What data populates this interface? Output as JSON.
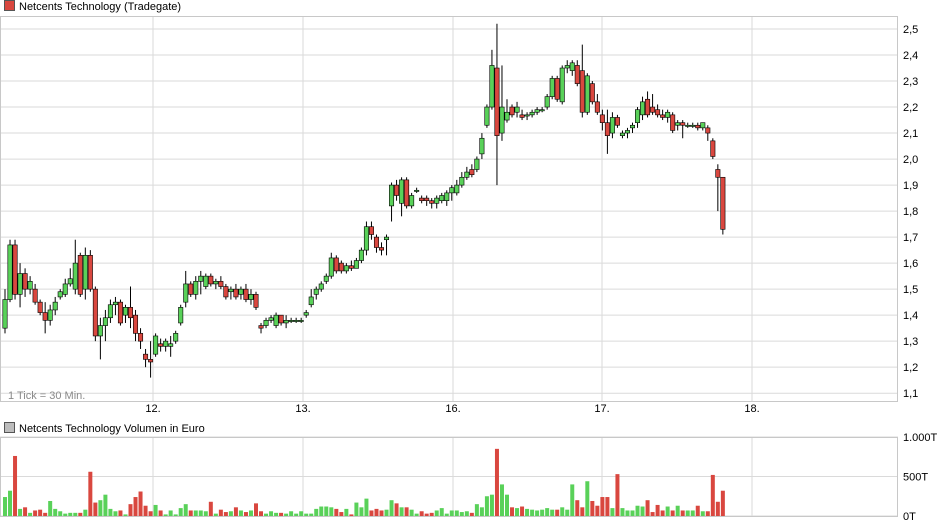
{
  "chart_data": [
    {
      "type": "candlestick",
      "title": "Netcents Technology (Tradegate)",
      "legend_color": "#d9473f",
      "note": "1 Tick = 30 Min.",
      "x_tick_labels": [
        "12.",
        "13.",
        "16.",
        "17.",
        "18."
      ],
      "ylim": [
        1.07,
        2.55
      ],
      "y_ticks": [
        1.1,
        1.2,
        1.3,
        1.4,
        1.5,
        1.6,
        1.7,
        1.8,
        1.9,
        2.0,
        2.1,
        2.2,
        2.3,
        2.4,
        2.5
      ],
      "y_tick_labels": [
        "1,1",
        "1,2",
        "1,3",
        "1,4",
        "1,5",
        "1,6",
        "1,7",
        "1,8",
        "1,9",
        "2,0",
        "2,1",
        "2,2",
        "2,3",
        "2,4",
        "2,5"
      ],
      "colors": {
        "up": "#59d159",
        "down": "#d9473f",
        "grid": "#dadada"
      },
      "candles": [
        [
          1.35,
          1.5,
          1.33,
          1.46
        ],
        [
          1.46,
          1.69,
          1.45,
          1.67
        ],
        [
          1.67,
          1.69,
          1.46,
          1.48
        ],
        [
          1.48,
          1.6,
          1.43,
          1.56
        ],
        [
          1.56,
          1.58,
          1.47,
          1.5
        ],
        [
          1.5,
          1.55,
          1.48,
          1.53
        ],
        [
          1.5,
          1.52,
          1.44,
          1.45
        ],
        [
          1.45,
          1.46,
          1.4,
          1.41
        ],
        [
          1.41,
          1.45,
          1.33,
          1.38
        ],
        [
          1.38,
          1.44,
          1.36,
          1.42
        ],
        [
          1.42,
          1.47,
          1.4,
          1.45
        ],
        [
          1.47,
          1.5,
          1.46,
          1.49
        ],
        [
          1.48,
          1.54,
          1.47,
          1.52
        ],
        [
          1.52,
          1.58,
          1.51,
          1.54
        ],
        [
          1.5,
          1.69,
          1.48,
          1.6
        ],
        [
          1.63,
          1.64,
          1.47,
          1.48
        ],
        [
          1.5,
          1.66,
          1.46,
          1.63
        ],
        [
          1.63,
          1.65,
          1.49,
          1.5
        ],
        [
          1.5,
          1.51,
          1.3,
          1.32
        ],
        [
          1.32,
          1.39,
          1.23,
          1.36
        ],
        [
          1.36,
          1.42,
          1.3,
          1.39
        ],
        [
          1.39,
          1.46,
          1.37,
          1.44
        ],
        [
          1.44,
          1.47,
          1.4,
          1.45
        ],
        [
          1.45,
          1.46,
          1.36,
          1.37
        ],
        [
          1.4,
          1.44,
          1.37,
          1.43
        ],
        [
          1.43,
          1.51,
          1.35,
          1.39
        ],
        [
          1.4,
          1.42,
          1.3,
          1.33
        ],
        [
          1.33,
          1.35,
          1.27,
          1.3
        ],
        [
          1.25,
          1.27,
          1.2,
          1.23
        ],
        [
          1.23,
          1.3,
          1.16,
          1.22
        ],
        [
          1.25,
          1.33,
          1.24,
          1.32
        ],
        [
          1.29,
          1.31,
          1.26,
          1.28
        ],
        [
          1.28,
          1.31,
          1.26,
          1.3
        ],
        [
          1.28,
          1.32,
          1.24,
          1.29
        ],
        [
          1.3,
          1.34,
          1.29,
          1.33
        ],
        [
          1.37,
          1.44,
          1.36,
          1.43
        ],
        [
          1.45,
          1.57,
          1.43,
          1.52
        ],
        [
          1.52,
          1.53,
          1.47,
          1.48
        ],
        [
          1.48,
          1.55,
          1.46,
          1.53
        ],
        [
          1.53,
          1.57,
          1.48,
          1.55
        ],
        [
          1.51,
          1.56,
          1.5,
          1.55
        ],
        [
          1.55,
          1.56,
          1.51,
          1.52
        ],
        [
          1.52,
          1.54,
          1.5,
          1.53
        ],
        [
          1.53,
          1.55,
          1.5,
          1.51
        ],
        [
          1.51,
          1.52,
          1.46,
          1.47
        ],
        [
          1.49,
          1.51,
          1.46,
          1.5
        ],
        [
          1.5,
          1.52,
          1.46,
          1.47
        ],
        [
          1.48,
          1.51,
          1.46,
          1.5
        ],
        [
          1.5,
          1.52,
          1.45,
          1.46
        ],
        [
          1.46,
          1.5,
          1.44,
          1.48
        ],
        [
          1.48,
          1.49,
          1.42,
          1.43
        ],
        [
          1.36,
          1.37,
          1.33,
          1.35
        ],
        [
          1.36,
          1.39,
          1.35,
          1.38
        ],
        [
          1.38,
          1.4,
          1.37,
          1.39
        ],
        [
          1.36,
          1.41,
          1.35,
          1.4
        ],
        [
          1.4,
          1.4,
          1.36,
          1.37
        ],
        [
          1.37,
          1.4,
          1.35,
          1.38
        ],
        [
          1.38,
          1.39,
          1.37,
          1.38
        ],
        [
          1.38,
          1.39,
          1.37,
          1.38
        ],
        [
          1.38,
          1.39,
          1.37,
          1.38
        ],
        [
          1.4,
          1.42,
          1.39,
          1.41
        ],
        [
          1.44,
          1.5,
          1.43,
          1.47
        ],
        [
          1.48,
          1.51,
          1.46,
          1.5
        ],
        [
          1.5,
          1.53,
          1.49,
          1.52
        ],
        [
          1.53,
          1.56,
          1.52,
          1.55
        ],
        [
          1.55,
          1.64,
          1.54,
          1.62
        ],
        [
          1.62,
          1.63,
          1.56,
          1.57
        ],
        [
          1.6,
          1.61,
          1.56,
          1.57
        ],
        [
          1.57,
          1.6,
          1.56,
          1.59
        ],
        [
          1.59,
          1.61,
          1.57,
          1.58
        ],
        [
          1.58,
          1.62,
          1.58,
          1.61
        ],
        [
          1.61,
          1.66,
          1.6,
          1.65
        ],
        [
          1.65,
          1.76,
          1.63,
          1.74
        ],
        [
          1.74,
          1.76,
          1.69,
          1.71
        ],
        [
          1.7,
          1.71,
          1.64,
          1.66
        ],
        [
          1.66,
          1.68,
          1.63,
          1.65
        ],
        [
          1.69,
          1.71,
          1.63,
          1.7
        ],
        [
          1.82,
          1.91,
          1.76,
          1.9
        ],
        [
          1.9,
          1.92,
          1.84,
          1.86
        ],
        [
          1.83,
          1.93,
          1.78,
          1.92
        ],
        [
          1.92,
          1.93,
          1.81,
          1.82
        ],
        [
          1.82,
          1.87,
          1.81,
          1.86
        ],
        [
          1.88,
          1.89,
          1.87,
          1.88
        ],
        [
          1.85,
          1.86,
          1.83,
          1.84
        ],
        [
          1.85,
          1.86,
          1.82,
          1.84
        ],
        [
          1.84,
          1.85,
          1.81,
          1.83
        ],
        [
          1.83,
          1.86,
          1.81,
          1.85
        ],
        [
          1.84,
          1.87,
          1.83,
          1.86
        ],
        [
          1.84,
          1.88,
          1.82,
          1.87
        ],
        [
          1.87,
          1.9,
          1.84,
          1.89
        ],
        [
          1.87,
          1.92,
          1.86,
          1.9
        ],
        [
          1.9,
          1.95,
          1.89,
          1.93
        ],
        [
          1.93,
          1.97,
          1.92,
          1.95
        ],
        [
          1.96,
          1.98,
          1.93,
          1.94
        ],
        [
          1.96,
          2.01,
          1.95,
          2.0
        ],
        [
          2.02,
          2.1,
          2.0,
          2.08
        ],
        [
          2.13,
          2.21,
          2.12,
          2.2
        ],
        [
          2.2,
          2.42,
          2.19,
          2.36
        ],
        [
          2.35,
          2.52,
          1.9,
          2.09
        ],
        [
          2.1,
          2.36,
          2.07,
          2.2
        ],
        [
          2.15,
          2.23,
          2.14,
          2.18
        ],
        [
          2.2,
          2.21,
          2.16,
          2.17
        ],
        [
          2.18,
          2.22,
          2.16,
          2.2
        ],
        [
          2.17,
          2.19,
          2.15,
          2.16
        ],
        [
          2.17,
          2.18,
          2.15,
          2.17
        ],
        [
          2.17,
          2.19,
          2.16,
          2.18
        ],
        [
          2.18,
          2.2,
          2.17,
          2.19
        ],
        [
          2.19,
          2.2,
          2.18,
          2.19
        ],
        [
          2.2,
          2.25,
          2.19,
          2.24
        ],
        [
          2.24,
          2.32,
          2.23,
          2.31
        ],
        [
          2.31,
          2.32,
          2.22,
          2.23
        ],
        [
          2.22,
          2.36,
          2.21,
          2.35
        ],
        [
          2.35,
          2.38,
          2.33,
          2.36
        ],
        [
          2.34,
          2.38,
          2.32,
          2.37
        ],
        [
          2.36,
          2.38,
          2.28,
          2.29
        ],
        [
          2.34,
          2.44,
          2.16,
          2.18
        ],
        [
          2.18,
          2.33,
          2.17,
          2.32
        ],
        [
          2.29,
          2.3,
          2.21,
          2.22
        ],
        [
          2.22,
          2.25,
          2.17,
          2.18
        ],
        [
          2.17,
          2.19,
          2.11,
          2.14
        ],
        [
          2.14,
          2.19,
          2.02,
          2.09
        ],
        [
          2.1,
          2.18,
          2.08,
          2.16
        ],
        [
          2.16,
          2.17,
          2.12,
          2.13
        ],
        [
          2.09,
          2.11,
          2.08,
          2.1
        ],
        [
          2.1,
          2.12,
          2.08,
          2.11
        ],
        [
          2.12,
          2.14,
          2.1,
          2.13
        ],
        [
          2.14,
          2.2,
          2.12,
          2.19
        ],
        [
          2.17,
          2.24,
          2.15,
          2.22
        ],
        [
          2.23,
          2.26,
          2.16,
          2.17
        ],
        [
          2.2,
          2.25,
          2.17,
          2.18
        ],
        [
          2.19,
          2.21,
          2.16,
          2.17
        ],
        [
          2.17,
          2.19,
          2.15,
          2.16
        ],
        [
          2.16,
          2.19,
          2.14,
          2.18
        ],
        [
          2.17,
          2.18,
          2.1,
          2.11
        ],
        [
          2.13,
          2.15,
          2.11,
          2.14
        ],
        [
          2.14,
          2.15,
          2.08,
          2.13
        ],
        [
          2.13,
          2.14,
          2.12,
          2.13
        ],
        [
          2.13,
          2.14,
          2.12,
          2.13
        ],
        [
          2.13,
          2.14,
          2.11,
          2.12
        ],
        [
          2.12,
          2.14,
          2.11,
          2.14
        ],
        [
          2.12,
          2.13,
          2.07,
          2.1
        ],
        [
          2.07,
          2.08,
          2.0,
          2.01
        ],
        [
          1.96,
          1.98,
          1.8,
          1.93
        ],
        [
          1.93,
          1.93,
          1.71,
          1.73
        ]
      ]
    },
    {
      "type": "bar",
      "title": "Netcents Technology Volumen in Euro",
      "legend_color": "#bdbdbd",
      "ylim": [
        0,
        1000
      ],
      "y_ticks": [
        0,
        500,
        1000
      ],
      "y_tick_labels": [
        "0T",
        "500T",
        "1.000T"
      ],
      "colors": {
        "up": "#59d159",
        "down": "#d9473f"
      },
      "values": [
        240,
        320,
        760,
        90,
        110,
        40,
        70,
        80,
        40,
        190,
        90,
        60,
        30,
        40,
        40,
        40,
        80,
        560,
        170,
        200,
        270,
        90,
        60,
        70,
        20,
        150,
        240,
        310,
        130,
        60,
        140,
        70,
        20,
        70,
        20,
        100,
        150,
        70,
        70,
        70,
        60,
        180,
        30,
        80,
        50,
        60,
        110,
        70,
        50,
        70,
        160,
        60,
        30,
        60,
        40,
        40,
        30,
        60,
        30,
        60,
        30,
        30,
        90,
        120,
        120,
        110,
        90,
        50,
        90,
        20,
        170,
        110,
        220,
        70,
        90,
        70,
        80,
        200,
        160,
        110,
        110,
        80,
        30,
        60,
        30,
        40,
        70,
        100,
        30,
        70,
        70,
        50,
        60,
        40,
        150,
        110,
        250,
        270,
        850,
        400,
        270,
        110,
        100,
        120,
        90,
        80,
        70,
        80,
        100,
        80,
        80,
        110,
        80,
        400,
        200,
        110,
        440,
        190,
        130,
        240,
        240,
        100,
        530,
        100,
        70,
        70,
        130,
        120,
        200,
        50,
        140,
        70,
        120,
        70,
        130,
        70,
        70,
        70,
        130,
        60,
        60,
        520,
        180,
        320
      ]
    }
  ]
}
